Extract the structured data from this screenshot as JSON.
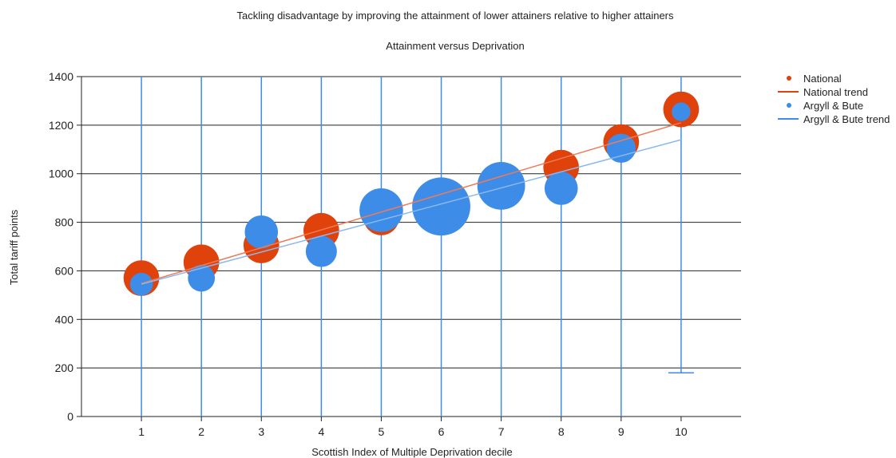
{
  "chart_data": {
    "type": "scatter",
    "title": "Tackling disadvantage by improving the attainment of lower attainers relative to higher attainers",
    "subtitle": "Attainment versus Deprivation",
    "xlabel": "Scottish Index of Multiple Deprivation decile",
    "ylabel": "Total tariff points",
    "xlim": [
      0,
      11
    ],
    "ylim": [
      0,
      1400
    ],
    "x_ticks": [
      "1",
      "2",
      "3",
      "4",
      "5",
      "6",
      "7",
      "8",
      "9",
      "10"
    ],
    "y_ticks": [
      "0",
      "200",
      "400",
      "600",
      "800",
      "1000",
      "1200",
      "1400"
    ],
    "grid": "horizontal",
    "legend_position": "right",
    "legend": [
      "National",
      "National trend",
      "Argyll & Bute",
      "Argyll & Bute trend"
    ],
    "series": [
      {
        "name": "National",
        "color": "#e0420c",
        "x": [
          1,
          2,
          3,
          4,
          5,
          6,
          7,
          8,
          9,
          10
        ],
        "y": [
          570,
          635,
          705,
          765,
          820,
          890,
          950,
          1025,
          1130,
          1265
        ],
        "bubble_size": [
          0.86,
          0.86,
          0.86,
          0.86,
          0.86,
          0.86,
          0.86,
          0.86,
          0.86,
          0.86
        ]
      },
      {
        "name": "National trend",
        "color": "#e0420c",
        "type": "line",
        "x": [
          1,
          10
        ],
        "y": [
          548,
          1210
        ]
      },
      {
        "name": "Argyll & Bute",
        "color": "#3d8de8",
        "x": [
          1,
          2,
          3,
          4,
          5,
          6,
          7,
          8,
          9,
          10
        ],
        "y": [
          545,
          570,
          760,
          680,
          850,
          865,
          950,
          940,
          1105,
          1255
        ],
        "bubble_size": [
          0.55,
          0.65,
          0.8,
          0.75,
          1.05,
          1.4,
          1.15,
          0.8,
          0.7,
          0.45
        ],
        "error_high": [
          1400,
          1400,
          1400,
          1400,
          1400,
          1400,
          1400,
          1400,
          1400,
          1400
        ],
        "error_low": [
          0,
          0,
          0,
          0,
          0,
          0,
          0,
          0,
          0,
          180
        ]
      },
      {
        "name": "Argyll & Bute trend",
        "color": "#3d8de8",
        "type": "line",
        "x": [
          1,
          10
        ],
        "y": [
          545,
          1140
        ]
      }
    ]
  }
}
